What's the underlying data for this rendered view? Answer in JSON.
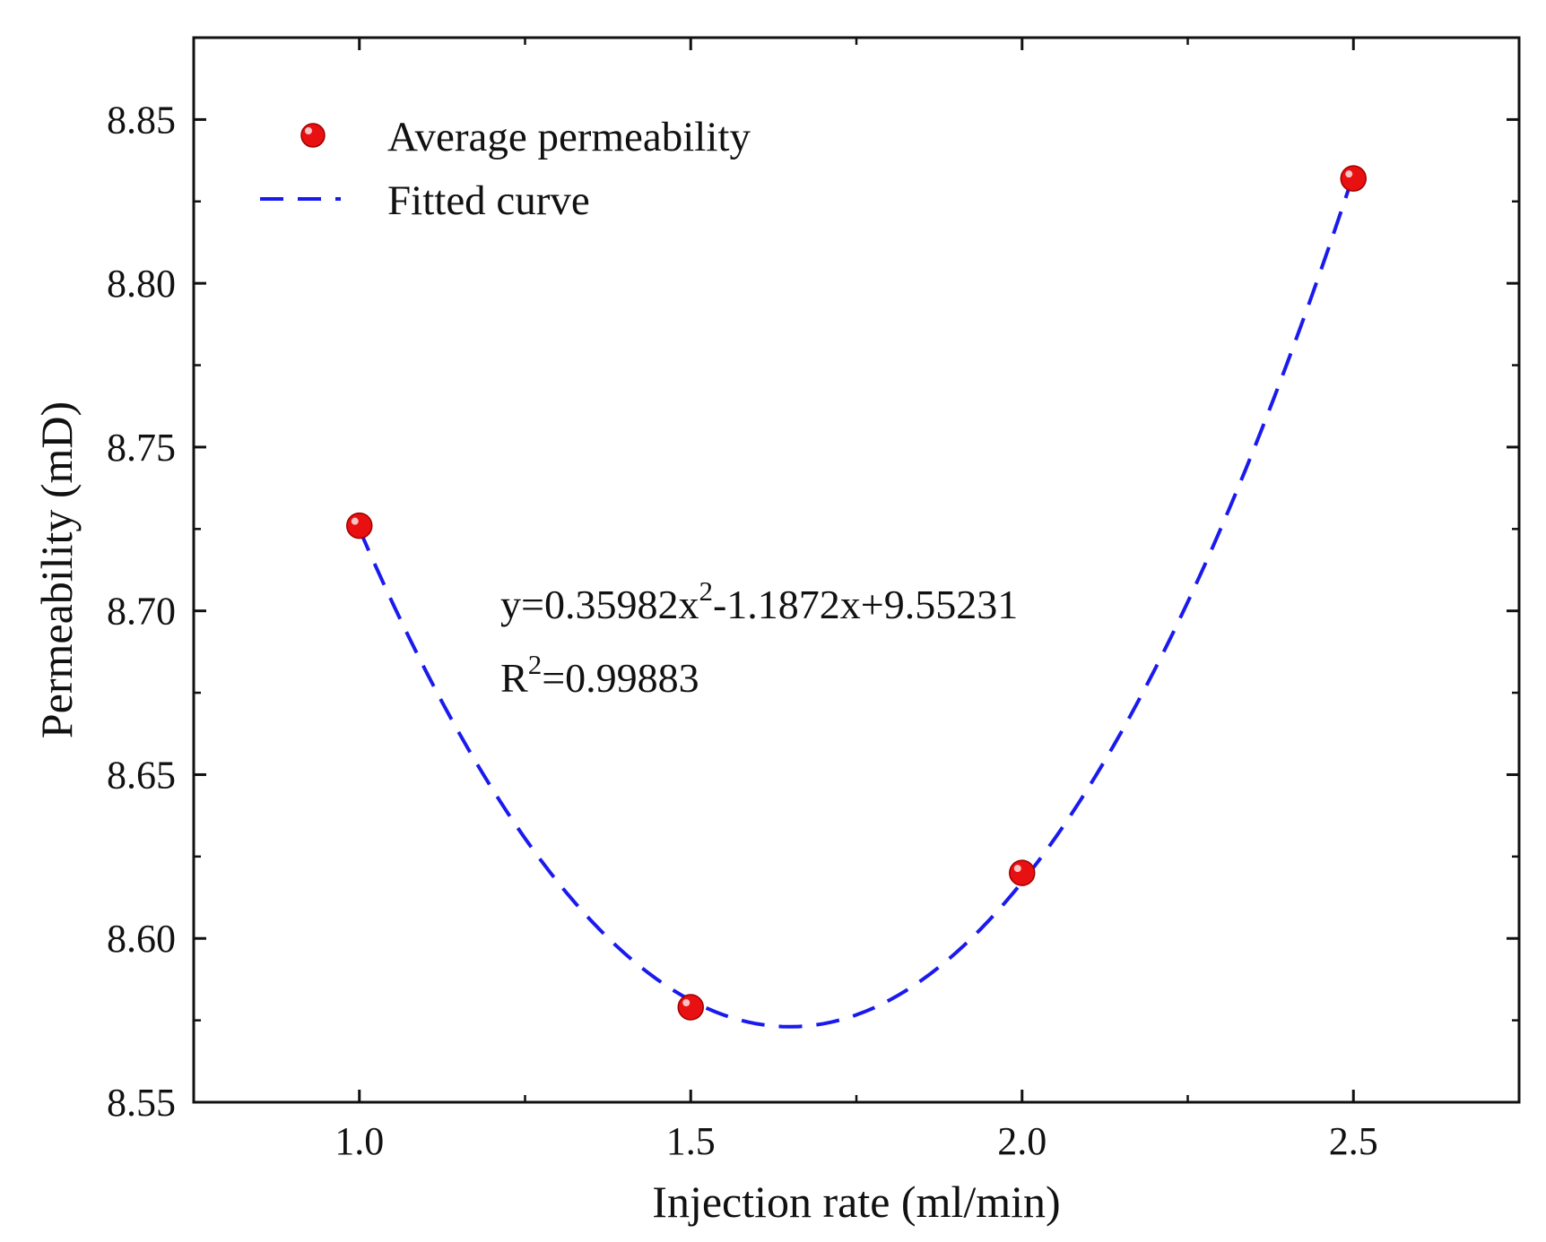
{
  "chart_data": {
    "type": "scatter",
    "title": "",
    "xlabel": "Injection rate (ml/min)",
    "ylabel": "Permeability (mD)",
    "xlim": [
      0.75,
      2.75
    ],
    "ylim": [
      8.55,
      8.875
    ],
    "x_ticks": [
      1.0,
      1.5,
      2.0,
      2.5
    ],
    "x_tick_labels": [
      "1.0",
      "1.5",
      "2.0",
      "2.5"
    ],
    "y_ticks": [
      8.55,
      8.6,
      8.65,
      8.7,
      8.75,
      8.8,
      8.85
    ],
    "y_tick_labels": [
      "8.55",
      "8.60",
      "8.65",
      "8.70",
      "8.75",
      "8.80",
      "8.85"
    ],
    "grid": false,
    "legend_position": "top-left",
    "series": [
      {
        "name": "Average permeability",
        "kind": "scatter",
        "color": "#e81010",
        "x": [
          1.0,
          1.5,
          2.0,
          2.5
        ],
        "y": [
          8.726,
          8.579,
          8.62,
          8.832
        ]
      },
      {
        "name": "Fitted curve",
        "kind": "line",
        "style": "dashed",
        "color": "#1a1aee",
        "equation": {
          "a": 0.35982,
          "b": -1.1872,
          "c": 9.55231
        },
        "x_range": [
          1.0,
          2.5
        ]
      }
    ],
    "annotations": {
      "equation_prefix": "y=0.35982x",
      "equation_exp": "2",
      "equation_suffix": "-1.1872x+9.55231",
      "r2_prefix": "R",
      "r2_exp": "2",
      "r2_suffix": "=0.99883"
    }
  }
}
